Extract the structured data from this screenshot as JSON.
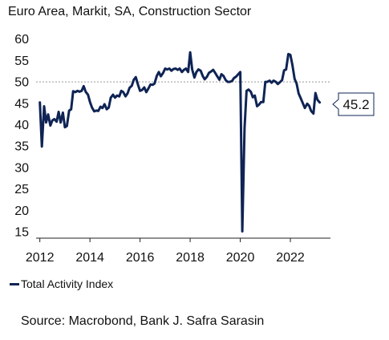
{
  "colors": {
    "series": "#0f2454",
    "axis": "#222222",
    "reference_line": "#999999",
    "text": "#111111"
  },
  "chart_data": {
    "type": "line",
    "title": "Euro Area, Markit, SA, Construction Sector",
    "xlabel": "",
    "ylabel": "",
    "xlim": [
      2011.85,
      2023.6
    ],
    "ylim": [
      13.5,
      62
    ],
    "x_ticks": [
      2012,
      2014,
      2016,
      2018,
      2020,
      2022
    ],
    "y_ticks": [
      15,
      20,
      25,
      30,
      35,
      40,
      45,
      50,
      55,
      60
    ],
    "reference_line": 50,
    "grid": false,
    "legend_position": "bottom-left",
    "last_value_label": "45.2",
    "series": [
      {
        "name": "Total Activity Index",
        "x": [
          2012.0,
          2012.08,
          2012.17,
          2012.25,
          2012.33,
          2012.42,
          2012.5,
          2012.58,
          2012.67,
          2012.75,
          2012.83,
          2012.92,
          2013.0,
          2013.08,
          2013.17,
          2013.25,
          2013.33,
          2013.42,
          2013.5,
          2013.58,
          2013.67,
          2013.75,
          2013.83,
          2013.92,
          2014.0,
          2014.08,
          2014.17,
          2014.25,
          2014.33,
          2014.42,
          2014.5,
          2014.58,
          2014.67,
          2014.75,
          2014.83,
          2014.92,
          2015.0,
          2015.08,
          2015.17,
          2015.25,
          2015.33,
          2015.42,
          2015.5,
          2015.58,
          2015.67,
          2015.75,
          2015.83,
          2015.92,
          2016.0,
          2016.08,
          2016.17,
          2016.25,
          2016.33,
          2016.42,
          2016.5,
          2016.58,
          2016.67,
          2016.75,
          2016.83,
          2016.92,
          2017.0,
          2017.08,
          2017.17,
          2017.25,
          2017.33,
          2017.42,
          2017.5,
          2017.58,
          2017.67,
          2017.75,
          2017.83,
          2017.92,
          2018.0,
          2018.08,
          2018.17,
          2018.25,
          2018.33,
          2018.42,
          2018.5,
          2018.58,
          2018.67,
          2018.75,
          2018.83,
          2018.92,
          2019.0,
          2019.08,
          2019.17,
          2019.25,
          2019.33,
          2019.42,
          2019.5,
          2019.58,
          2019.67,
          2019.75,
          2019.83,
          2019.92,
          2020.0,
          2020.08,
          2020.17,
          2020.25,
          2020.33,
          2020.42,
          2020.5,
          2020.58,
          2020.67,
          2020.75,
          2020.83,
          2020.92,
          2021.0,
          2021.08,
          2021.17,
          2021.25,
          2021.33,
          2021.42,
          2021.5,
          2021.58,
          2021.67,
          2021.75,
          2021.83,
          2021.92,
          2022.0,
          2022.08,
          2022.17,
          2022.25,
          2022.33,
          2022.42,
          2022.5,
          2022.58,
          2022.67,
          2022.75,
          2022.83,
          2022.92,
          2023.0,
          2023.08,
          2023.17
        ],
        "values": [
          45.2,
          34.9,
          44.3,
          40.5,
          42.4,
          39.8,
          41.0,
          41.3,
          40.7,
          43.0,
          40.5,
          42.8,
          39.4,
          39.7,
          43.3,
          43.6,
          47.8,
          47.6,
          47.9,
          47.7,
          47.9,
          49.0,
          47.7,
          47.0,
          45.3,
          44.0,
          43.1,
          43.3,
          43.2,
          44.2,
          43.9,
          44.8,
          43.6,
          44.0,
          46.3,
          47.0,
          46.3,
          46.8,
          46.6,
          47.9,
          47.6,
          46.6,
          47.3,
          48.6,
          49.1,
          50.5,
          51.1,
          49.3,
          47.9,
          48.1,
          48.7,
          47.6,
          48.4,
          49.4,
          49.3,
          49.6,
          51.4,
          52.3,
          51.3,
          52.1,
          53.1,
          52.9,
          53.1,
          52.6,
          53.0,
          53.1,
          52.8,
          53.1,
          52.3,
          52.8,
          53.1,
          52.3,
          56.9,
          52.9,
          51.0,
          52.3,
          52.9,
          52.6,
          51.4,
          50.6,
          51.2,
          52.1,
          52.4,
          52.8,
          52.1,
          51.3,
          50.5,
          51.8,
          51.4,
          50.4,
          50.0,
          50.0,
          50.2,
          50.9,
          51.2,
          51.8,
          52.3,
          15.1,
          39.2,
          47.9,
          48.2,
          47.7,
          46.4,
          46.8,
          44.3,
          44.7,
          45.3,
          45.3,
          50.0,
          50.0,
          50.3,
          49.8,
          50.3,
          50.0,
          49.5,
          49.9,
          50.4,
          52.7,
          52.9,
          56.5,
          56.3,
          54.0,
          50.7,
          49.6,
          47.3,
          46.1,
          45.0,
          43.9,
          44.9,
          44.4,
          43.2,
          42.6,
          47.4,
          45.8,
          45.2
        ]
      }
    ]
  },
  "legend": {
    "label": "Total Activity Index"
  },
  "source": {
    "text": "Source: Macrobond, Bank J. Safra Sarasin"
  }
}
